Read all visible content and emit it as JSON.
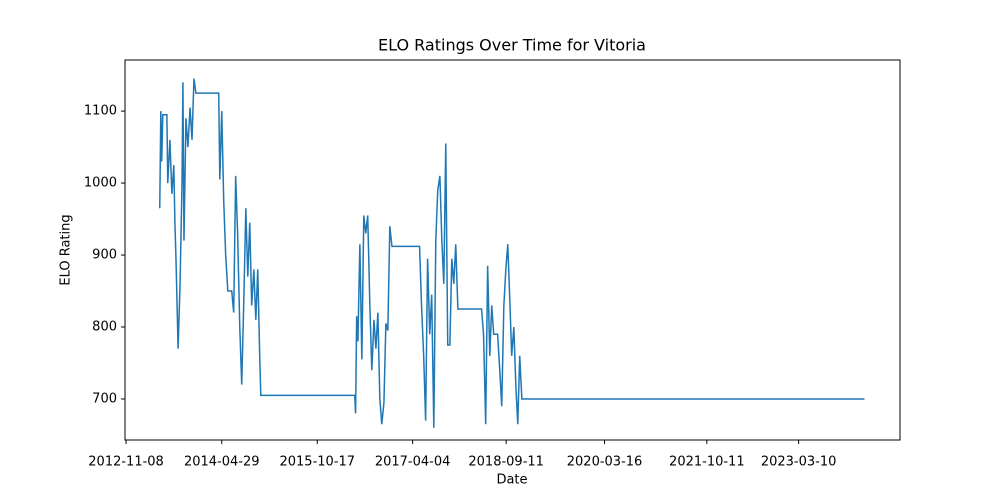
{
  "chart_data": {
    "type": "line",
    "title": "ELO Ratings Over Time for Vitoria",
    "x_label": "Date",
    "y_label": "ELO Rating",
    "color": "#1f77b4",
    "x": [
      "2013-05-16",
      "2013-05-22",
      "2013-05-27",
      "2013-06-02",
      "2013-06-25",
      "2013-06-30",
      "2013-07-12",
      "2013-07-23",
      "2013-08-03",
      "2013-08-09",
      "2013-08-15",
      "2013-08-27",
      "2013-09-07",
      "2013-09-18",
      "2013-09-23",
      "2013-09-29",
      "2013-10-10",
      "2013-10-21",
      "2013-11-02",
      "2013-11-13",
      "2013-11-24",
      "2013-12-05",
      "2014-04-12",
      "2014-04-18",
      "2014-04-29",
      "2014-05-10",
      "2014-05-21",
      "2014-06-02",
      "2014-06-24",
      "2014-07-05",
      "2014-07-16",
      "2014-07-27",
      "2014-08-08",
      "2014-08-19",
      "2014-08-31",
      "2014-09-11",
      "2014-09-22",
      "2014-10-03",
      "2014-10-14",
      "2014-10-26",
      "2014-11-06",
      "2014-11-17",
      "2014-11-28",
      "2014-12-04",
      "2016-05-14",
      "2016-05-19",
      "2016-05-25",
      "2016-06-01",
      "2016-06-12",
      "2016-06-23",
      "2016-07-04",
      "2016-07-15",
      "2016-07-26",
      "2016-08-07",
      "2016-08-18",
      "2016-08-30",
      "2016-09-10",
      "2016-09-21",
      "2016-10-02",
      "2016-10-13",
      "2016-10-25",
      "2016-11-05",
      "2016-11-16",
      "2016-11-27",
      "2016-12-09",
      "2017-05-13",
      "2017-05-24",
      "2017-06-05",
      "2017-06-16",
      "2017-06-27",
      "2017-07-09",
      "2017-07-20",
      "2017-08-01",
      "2017-08-12",
      "2017-08-23",
      "2017-09-04",
      "2017-09-15",
      "2017-09-26",
      "2017-10-07",
      "2017-10-18",
      "2017-10-30",
      "2017-11-10",
      "2017-11-21",
      "2017-12-02",
      "2017-12-14",
      "2018-04-26",
      "2018-05-07",
      "2018-05-19",
      "2018-05-30",
      "2018-06-11",
      "2018-06-22",
      "2018-07-03",
      "2018-07-25",
      "2018-08-06",
      "2018-08-17",
      "2018-08-29",
      "2018-09-09",
      "2018-09-20",
      "2018-10-01",
      "2018-10-12",
      "2018-10-24",
      "2018-11-04",
      "2018-11-15",
      "2018-11-26",
      "2018-12-08",
      "2018-12-19",
      "2024-03-14"
    ],
    "values": [
      965,
      1100,
      1030,
      1095,
      1095,
      1000,
      1060,
      985,
      1025,
      945,
      895,
      770,
      860,
      1000,
      1140,
      920,
      1090,
      1050,
      1105,
      1060,
      1145,
      1125,
      1125,
      1005,
      1100,
      975,
      900,
      850,
      850,
      820,
      1010,
      930,
      800,
      720,
      840,
      965,
      870,
      945,
      830,
      880,
      810,
      880,
      760,
      705,
      705,
      680,
      815,
      780,
      915,
      755,
      955,
      930,
      955,
      830,
      740,
      810,
      770,
      820,
      700,
      665,
      695,
      805,
      795,
      940,
      912,
      912,
      830,
      760,
      670,
      895,
      790,
      845,
      660,
      920,
      990,
      1010,
      920,
      860,
      1055,
      775,
      775,
      895,
      860,
      915,
      825,
      825,
      790,
      665,
      885,
      760,
      830,
      790,
      790,
      740,
      690,
      830,
      880,
      915,
      840,
      760,
      800,
      720,
      665,
      760,
      700,
      700,
      700
    ],
    "xlim": [
      "2012-11-02",
      "2024-09-29"
    ],
    "xticks": [
      "2012-11-08",
      "2014-04-29",
      "2015-10-17",
      "2017-04-04",
      "2018-09-11",
      "2020-03-16",
      "2021-10-11",
      "2023-03-10"
    ],
    "ylim": [
      643,
      1171
    ],
    "yticks": [
      700,
      800,
      900,
      1000,
      1100
    ]
  }
}
